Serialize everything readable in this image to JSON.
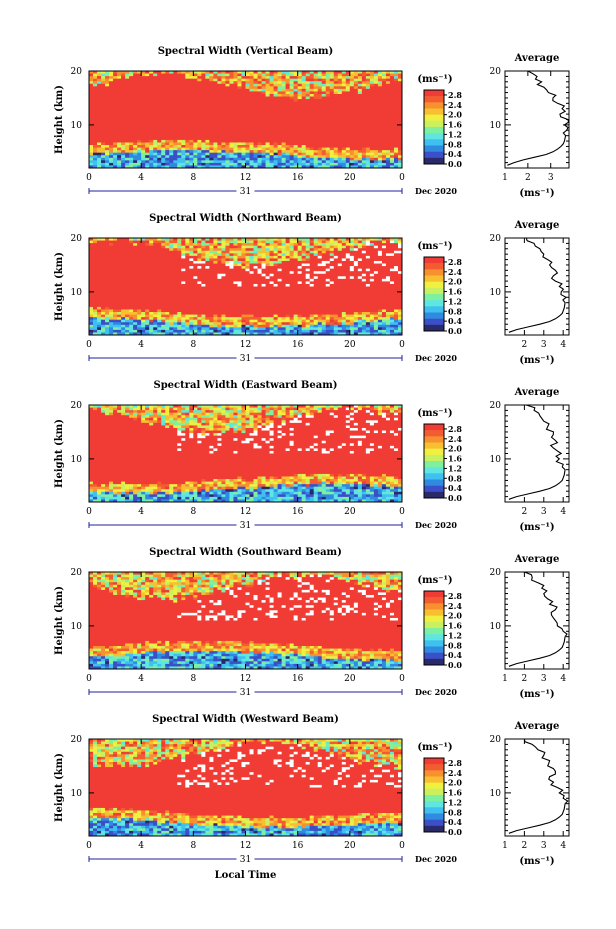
{
  "chart_data": [
    {
      "type": "heatmap",
      "title": "Spectral Width (Vertical Beam)",
      "ylabel": "Height (km)",
      "y_ticks": [
        "20",
        "10"
      ],
      "x_ticks": [
        "0",
        "4",
        "8",
        "12",
        "16",
        "20",
        "0"
      ],
      "xlim": [
        0,
        24
      ],
      "ylim": [
        2,
        20
      ],
      "date_label": "31",
      "month_label": "Dec 2020",
      "colorbar_unit": "(ms⁻¹)",
      "colorbar_ticks": [
        "2.8",
        "2.4",
        "2.0",
        "1.6",
        "1.2",
        "0.8",
        "0.4",
        "0.0"
      ],
      "colorbar_range": [
        0,
        3.0
      ],
      "average_profile": {
        "title": "Average",
        "xlabel": "(ms⁻¹)",
        "x_ticks": [
          "1",
          "2",
          "3"
        ],
        "xlim": [
          1,
          3.8
        ],
        "y_ticks": [
          "20",
          "10"
        ],
        "ylim": [
          2,
          20
        ],
        "height": [
          2.5,
          3,
          3.5,
          4,
          4.5,
          5,
          5.5,
          6,
          6.5,
          7,
          8,
          9,
          10,
          11,
          12,
          13,
          14,
          15,
          16,
          17,
          18,
          19,
          20
        ],
        "width": [
          1.1,
          1.4,
          1.8,
          2.3,
          2.8,
          3.1,
          3.3,
          3.45,
          3.55,
          3.6,
          3.65,
          3.7,
          3.6,
          3.75,
          3.4,
          3.5,
          3.3,
          3.1,
          2.9,
          2.7,
          2.6,
          2.4,
          2.0
        ]
      }
    },
    {
      "type": "heatmap",
      "title": "Spectral Width (Northward Beam)",
      "ylabel": "Height (km)",
      "y_ticks": [
        "20",
        "10"
      ],
      "x_ticks": [
        "0",
        "4",
        "8",
        "12",
        "16",
        "20",
        "0"
      ],
      "xlim": [
        0,
        24
      ],
      "ylim": [
        2,
        20
      ],
      "date_label": "31",
      "month_label": "Dec 2020",
      "colorbar_unit": "(ms⁻¹)",
      "colorbar_ticks": [
        "2.8",
        "2.4",
        "2.0",
        "1.6",
        "1.2",
        "0.8",
        "0.4",
        "0.0"
      ],
      "colorbar_range": [
        0,
        3.0
      ],
      "average_profile": {
        "title": "Average",
        "xlabel": "(ms⁻¹)",
        "x_ticks": [
          "2",
          "3",
          "4"
        ],
        "xlim": [
          1,
          4.3
        ],
        "y_ticks": [
          "20",
          "10"
        ],
        "ylim": [
          2,
          20
        ],
        "height": [
          2.5,
          3,
          3.5,
          4,
          4.5,
          5,
          5.5,
          6,
          6.5,
          7,
          8,
          9,
          10,
          11,
          12,
          13,
          14,
          15,
          16,
          17,
          18,
          19,
          20
        ],
        "width": [
          1.2,
          1.6,
          2.2,
          2.8,
          3.3,
          3.6,
          3.8,
          3.95,
          4.0,
          4.05,
          4.1,
          4.15,
          3.9,
          3.8,
          3.6,
          3.5,
          3.6,
          3.3,
          3.2,
          3.0,
          2.8,
          2.5,
          2.1
        ]
      }
    },
    {
      "type": "heatmap",
      "title": "Spectral Width (Eastward Beam)",
      "ylabel": "Height (km)",
      "y_ticks": [
        "20",
        "10"
      ],
      "x_ticks": [
        "0",
        "4",
        "8",
        "12",
        "16",
        "20",
        "0"
      ],
      "xlim": [
        0,
        24
      ],
      "ylim": [
        2,
        20
      ],
      "date_label": "31",
      "month_label": "Dec 2020",
      "colorbar_unit": "(ms⁻¹)",
      "colorbar_ticks": [
        "2.8",
        "2.4",
        "2.0",
        "1.6",
        "1.2",
        "0.8",
        "0.4",
        "0.0"
      ],
      "colorbar_range": [
        0,
        3.0
      ],
      "average_profile": {
        "title": "Average",
        "xlabel": "(ms⁻¹)",
        "x_ticks": [
          "2",
          "3",
          "4"
        ],
        "xlim": [
          1,
          4.3
        ],
        "y_ticks": [
          "20",
          "10"
        ],
        "ylim": [
          2,
          20
        ],
        "height": [
          2.5,
          3,
          3.5,
          4,
          4.5,
          5,
          5.5,
          6,
          6.5,
          7,
          8,
          9,
          10,
          11,
          12,
          13,
          14,
          15,
          16,
          17,
          18,
          19,
          20
        ],
        "width": [
          1.2,
          1.6,
          2.2,
          2.8,
          3.3,
          3.6,
          3.8,
          3.95,
          4.0,
          4.05,
          4.1,
          4.0,
          3.8,
          3.9,
          3.5,
          3.7,
          3.4,
          3.5,
          3.2,
          3.0,
          2.8,
          2.5,
          2.1
        ]
      }
    },
    {
      "type": "heatmap",
      "title": "Spectral Width (Southward Beam)",
      "ylabel": "Height (km)",
      "y_ticks": [
        "20",
        "10"
      ],
      "x_ticks": [
        "0",
        "4",
        "8",
        "12",
        "16",
        "20",
        "0"
      ],
      "xlim": [
        0,
        24
      ],
      "ylim": [
        2,
        20
      ],
      "date_label": "31",
      "month_label": "Dec 2020",
      "colorbar_unit": "(ms⁻¹)",
      "colorbar_ticks": [
        "2.8",
        "2.4",
        "2.0",
        "1.6",
        "1.2",
        "0.8",
        "0.4",
        "0.0"
      ],
      "colorbar_range": [
        0,
        3.0
      ],
      "average_profile": {
        "title": "Average",
        "xlabel": "(ms⁻¹)",
        "x_ticks": [
          "1",
          "2",
          "3",
          "4"
        ],
        "xlim": [
          1,
          4.3
        ],
        "y_ticks": [
          "20",
          "10"
        ],
        "ylim": [
          2,
          20
        ],
        "height": [
          2.5,
          3,
          3.5,
          4,
          4.5,
          5,
          5.5,
          6,
          6.5,
          7,
          8,
          9,
          10,
          11,
          12,
          13,
          14,
          15,
          16,
          17,
          18,
          19,
          20
        ],
        "width": [
          1.2,
          1.6,
          2.2,
          2.8,
          3.3,
          3.6,
          3.8,
          3.95,
          4.0,
          4.05,
          4.1,
          4.0,
          3.7,
          3.6,
          3.4,
          3.6,
          3.3,
          3.2,
          3.0,
          2.9,
          2.7,
          2.4,
          2.0
        ]
      }
    },
    {
      "type": "heatmap",
      "title": "Spectral Width (Westward Beam)",
      "ylabel": "Height (km)",
      "y_ticks": [
        "20",
        "10"
      ],
      "x_ticks": [
        "0",
        "4",
        "8",
        "12",
        "16",
        "20",
        "0"
      ],
      "xlim": [
        0,
        24
      ],
      "ylim": [
        2,
        20
      ],
      "date_label": "31",
      "month_label": "Dec 2020",
      "colorbar_unit": "(ms⁻¹)",
      "colorbar_ticks": [
        "2.8",
        "2.4",
        "2.0",
        "1.6",
        "1.2",
        "0.8",
        "0.4",
        "0.0"
      ],
      "colorbar_range": [
        0,
        3.0
      ],
      "average_profile": {
        "title": "Average",
        "xlabel": "(ms⁻¹)",
        "x_ticks": [
          "1",
          "2",
          "3",
          "4"
        ],
        "xlim": [
          1,
          4.3
        ],
        "y_ticks": [
          "20",
          "10"
        ],
        "ylim": [
          2,
          20
        ],
        "height": [
          2.5,
          3,
          3.5,
          4,
          4.5,
          5,
          5.5,
          6,
          6.5,
          7,
          8,
          9,
          10,
          11,
          12,
          13,
          14,
          15,
          16,
          17,
          18,
          19,
          20
        ],
        "width": [
          1.2,
          1.6,
          2.2,
          2.8,
          3.3,
          3.6,
          3.8,
          3.95,
          4.0,
          4.05,
          4.1,
          4.0,
          3.8,
          3.7,
          3.5,
          3.3,
          3.6,
          3.2,
          3.3,
          3.0,
          2.7,
          2.4,
          2.0
        ]
      }
    }
  ],
  "x_axis_title": "Local Time",
  "colors": {
    "colormap": [
      "#2a2a6a",
      "#3a4fc8",
      "#2f8be0",
      "#3fc0f0",
      "#5fe6e0",
      "#7ef0a0",
      "#c8f060",
      "#f0f040",
      "#f8c030",
      "#f89030",
      "#f25c30",
      "#f03c34"
    ],
    "date_bar": "#2020a0"
  }
}
